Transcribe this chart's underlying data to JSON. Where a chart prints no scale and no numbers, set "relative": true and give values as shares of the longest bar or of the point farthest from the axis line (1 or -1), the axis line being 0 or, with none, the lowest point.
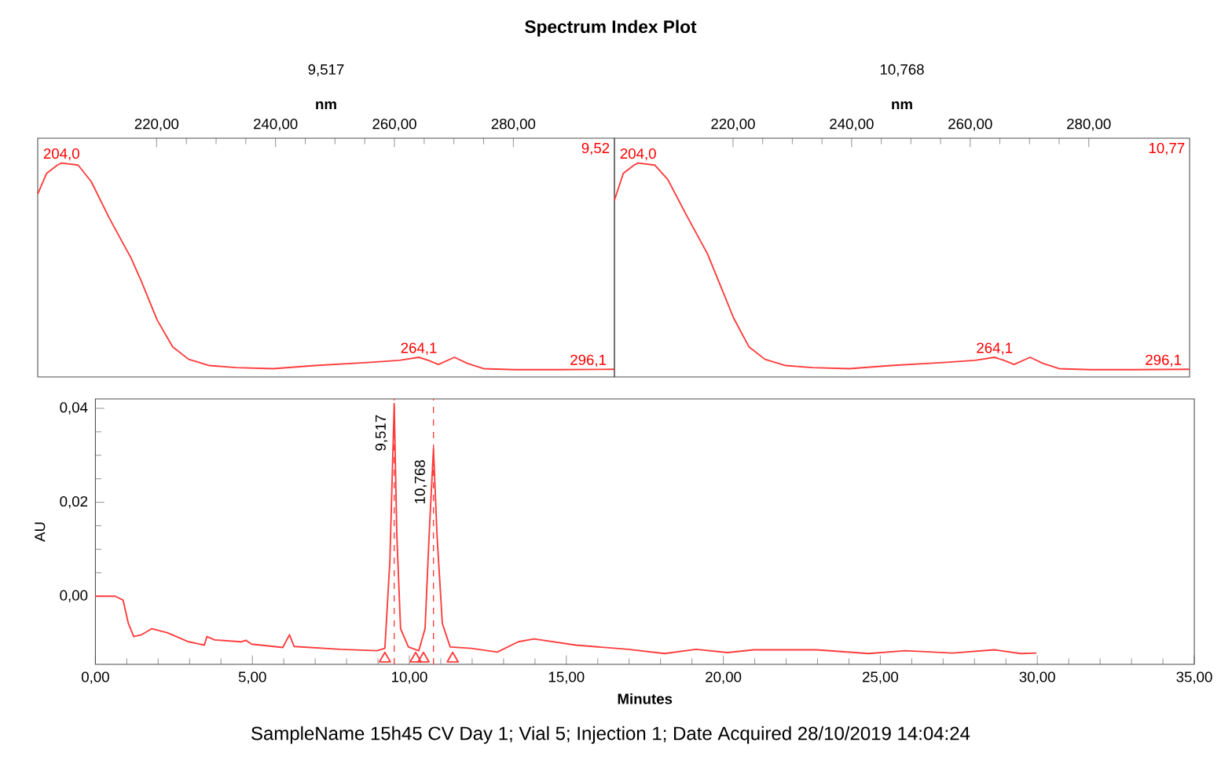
{
  "chart_data": [
    {
      "type": "line",
      "title": "9,517",
      "xlabel": "nm",
      "relative": true,
      "tick_labels": "x",
      "xlim": [
        200,
        297
      ],
      "xticks": [
        {
          "value": 220,
          "label": "220,00"
        },
        {
          "value": 240,
          "label": "240,00"
        },
        {
          "value": 260,
          "label": "260,00"
        },
        {
          "value": 280,
          "label": "280,00"
        }
      ],
      "x": [
        200.0,
        201.5,
        203.3,
        204.0,
        206.8,
        209.0,
        212.1,
        215.7,
        217.4,
        220.1,
        222.7,
        225.4,
        228.9,
        233.4,
        239.6,
        246.6,
        255.5,
        260.8,
        264.1,
        265.7,
        267.4,
        270.1,
        272.3,
        275.0,
        280.3,
        287.3,
        297.0
      ],
      "series": [
        {
          "color": "#ff3b3b",
          "values": [
            0.85,
            0.95,
            0.99,
            1.0,
            0.99,
            0.91,
            0.73,
            0.54,
            0.43,
            0.24,
            0.11,
            0.05,
            0.02,
            0.01,
            0.005,
            0.02,
            0.035,
            0.045,
            0.06,
            0.045,
            0.025,
            0.06,
            0.03,
            0.005,
            0.0,
            0.0,
            0.002
          ]
        }
      ],
      "annotations": [
        "Spectrum Index Plot",
        "9,52",
        {
          "text": "204,0",
          "x": 204.0,
          "y": 1.0
        },
        {
          "text": "264,1",
          "x": 264.1,
          "y": 0.06
        },
        {
          "text": "296,1",
          "x": 296.1,
          "y": 0.002
        }
      ]
    },
    {
      "type": "line",
      "title": "10,768",
      "xlabel": "nm",
      "relative": true,
      "tick_labels": "x",
      "xlim": [
        200,
        297
      ],
      "xticks": [
        {
          "value": 220,
          "label": "220,00"
        },
        {
          "value": 240,
          "label": "240,00"
        },
        {
          "value": 260,
          "label": "260,00"
        },
        {
          "value": 280,
          "label": "280,00"
        }
      ],
      "x": [
        200.0,
        201.5,
        203.3,
        204.0,
        206.8,
        209.0,
        212.1,
        215.7,
        217.4,
        220.1,
        222.7,
        225.4,
        228.9,
        233.4,
        239.6,
        246.6,
        255.5,
        260.8,
        264.1,
        265.7,
        267.4,
        270.1,
        272.3,
        275.0,
        280.3,
        287.3,
        297.0
      ],
      "series": [
        {
          "color": "#ff3b3b",
          "values": [
            0.82,
            0.95,
            0.99,
            1.0,
            0.99,
            0.92,
            0.75,
            0.56,
            0.44,
            0.25,
            0.11,
            0.05,
            0.02,
            0.01,
            0.005,
            0.02,
            0.035,
            0.045,
            0.06,
            0.045,
            0.025,
            0.06,
            0.03,
            0.005,
            0.0,
            0.0,
            0.002
          ]
        }
      ],
      "annotations": [
        "10,77",
        {
          "text": "204,0",
          "x": 204.0,
          "y": 1.0
        },
        {
          "text": "264,1",
          "x": 264.1,
          "y": 0.06
        },
        {
          "text": "296,1",
          "x": 296.1,
          "y": 0.002
        }
      ]
    },
    {
      "type": "line",
      "xlabel": "Minutes",
      "ylabel": "AU",
      "xlim": [
        0,
        35
      ],
      "ylim": [
        -0.0145,
        0.042
      ],
      "xticks": [
        {
          "value": 0,
          "label": "0,00"
        },
        {
          "value": 5,
          "label": "5,00"
        },
        {
          "value": 10,
          "label": "10,00"
        },
        {
          "value": 15,
          "label": "15,00"
        },
        {
          "value": 20,
          "label": "20,00"
        },
        {
          "value": 25,
          "label": "25,00"
        },
        {
          "value": 30,
          "label": "30,00"
        },
        {
          "value": 35,
          "label": "35,00"
        }
      ],
      "yticks": [
        {
          "value": 0,
          "label": "0,00"
        },
        {
          "value": 0.02,
          "label": "0,02"
        },
        {
          "value": 0.04,
          "label": "0,04"
        }
      ],
      "series": [
        {
          "color": "#ff3b3b",
          "x": [
            0,
            0.63,
            0.88,
            1.05,
            1.22,
            1.47,
            1.8,
            2.3,
            2.97,
            3.47,
            3.55,
            3.8,
            4.63,
            4.8,
            4.97,
            5.97,
            6.18,
            6.33,
            7.8,
            8.97,
            9.22,
            9.38,
            9.517,
            9.6,
            9.72,
            9.97,
            10.3,
            10.5,
            10.63,
            10.768,
            10.88,
            11.05,
            11.3,
            11.97,
            12.8,
            13.47,
            13.97,
            15.3,
            16.97,
            18.13,
            19.13,
            20.13,
            20.97,
            22.97,
            24.63,
            25.8,
            27.3,
            28.63,
            29.47,
            29.97
          ],
          "values": [
            0,
            0,
            -0.0008,
            -0.0058,
            -0.0086,
            -0.0082,
            -0.0069,
            -0.0078,
            -0.0097,
            -0.0104,
            -0.0086,
            -0.0093,
            -0.0097,
            -0.0094,
            -0.0102,
            -0.0109,
            -0.0082,
            -0.0107,
            -0.0113,
            -0.0116,
            -0.0111,
            0.0076,
            0.041,
            0.0131,
            -0.0069,
            -0.0108,
            -0.0116,
            -0.0069,
            0.0131,
            0.0314,
            0.0131,
            -0.0058,
            -0.0108,
            -0.0111,
            -0.0119,
            -0.0097,
            -0.0091,
            -0.0104,
            -0.0113,
            -0.0122,
            -0.0113,
            -0.012,
            -0.0114,
            -0.0114,
            -0.0122,
            -0.0116,
            -0.0121,
            -0.0114,
            -0.0122,
            -0.0121
          ]
        },
        {
          "type": "scatter",
          "marker": "triangle",
          "color": "#ff3b3b",
          "x": [
            9.22,
            10.2,
            10.45,
            11.38
          ],
          "values": [
            -0.0133,
            -0.0133,
            -0.0133,
            -0.0133
          ]
        }
      ],
      "ref_lines": [
        {
          "axis": "x",
          "value": 9.517,
          "color": "#ff3b3b",
          "line_style": "dashed"
        },
        {
          "axis": "x",
          "value": 10.768,
          "color": "#ff3b3b",
          "line_style": "dashed"
        }
      ],
      "annotations": [
        {
          "text": "9,517",
          "x": 9.517,
          "y": 0.041
        },
        {
          "text": "10,768",
          "x": 10.768,
          "y": 0.0314
        },
        "SampleName 15h45 CV Day 1; Vial 5; Injection 1; Date Acquired 28/10/2019 14:04:24"
      ]
    }
  ]
}
